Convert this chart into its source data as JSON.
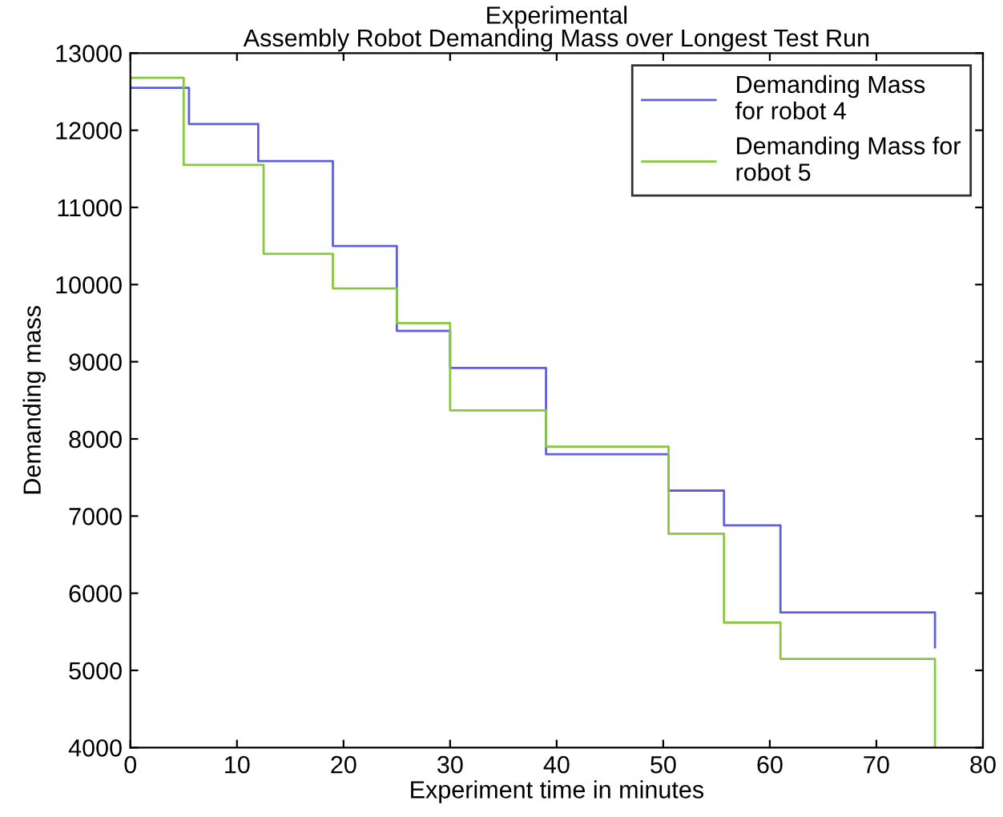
{
  "chart_data": {
    "type": "step",
    "title": "Experimental\nAssembly Robot Demanding Mass over Longest Test Run",
    "xlabel": "Experiment time in minutes",
    "ylabel": "Demanding mass",
    "series": [
      {
        "name": "Demanding Mass\nfor robot 4",
        "color": "#6060d8",
        "x": [
          0,
          5.5,
          12,
          19,
          25,
          30,
          39,
          50.5,
          55.7,
          61,
          75.5
        ],
        "values": [
          12550,
          12080,
          11600,
          10500,
          9400,
          8920,
          7800,
          7330,
          6880,
          5750,
          5300
        ]
      },
      {
        "name": "Demanding Mass for\nrobot 5",
        "color": "#88c840",
        "x": [
          0,
          5,
          12.5,
          19,
          25,
          30,
          39,
          50.5,
          55.7,
          61,
          75.5
        ],
        "values": [
          12680,
          11550,
          10400,
          9950,
          9500,
          8370,
          7900,
          6770,
          5620,
          5150,
          4000
        ]
      }
    ],
    "xlim": [
      0,
      80
    ],
    "xticks": [
      0,
      10,
      20,
      30,
      40,
      50,
      60,
      70,
      80
    ],
    "ylim": [
      4000,
      13000
    ],
    "yticks": [
      4000,
      5000,
      6000,
      7000,
      8000,
      9000,
      10000,
      11000,
      12000,
      13000
    ],
    "legend": "top right",
    "grid": false
  }
}
